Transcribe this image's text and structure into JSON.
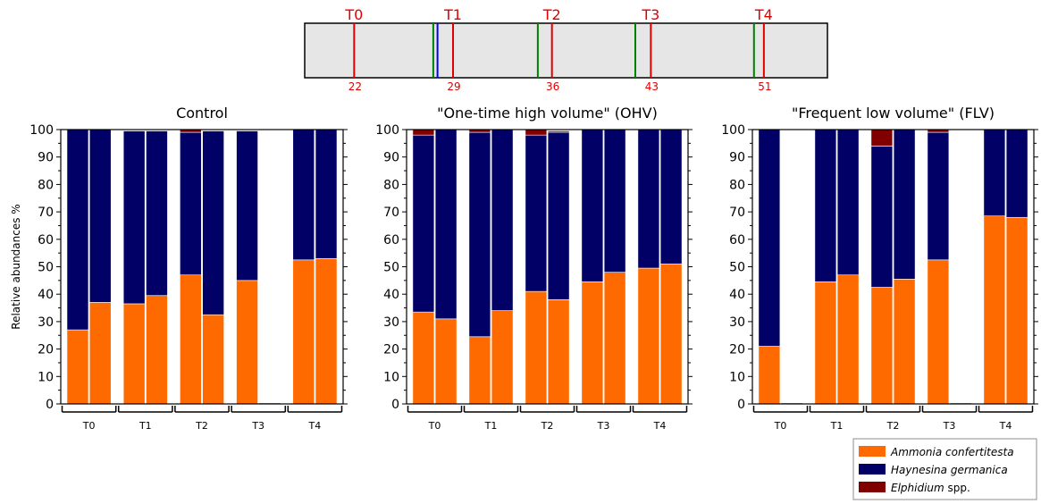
{
  "timeline": {
    "points": [
      {
        "label": "T0",
        "day": "22",
        "day_value": 22
      },
      {
        "label": "T1",
        "day": "29",
        "day_value": 29
      },
      {
        "label": "T2",
        "day": "36",
        "day_value": 36
      },
      {
        "label": "T3",
        "day": "43",
        "day_value": 43
      },
      {
        "label": "T4",
        "day": "51",
        "day_value": 51
      }
    ],
    "blue_marker_day": 27.9,
    "green_marker_days": [
      27.6,
      35.0,
      41.9,
      50.3
    ],
    "range": [
      18.5,
      55.5
    ]
  },
  "colors": {
    "ammonia": "#ff6a00",
    "haynesina": "#000066",
    "elphidium": "#800000",
    "timepoint_line": "#e00000",
    "green_line": "#008000",
    "blue_line": "#0000ff",
    "timeline_fill": "#e6e6e6"
  },
  "legend": {
    "items": [
      {
        "italic": "Ammonia confertitesta",
        "plain": "",
        "color_key": "ammonia"
      },
      {
        "italic": "Haynesina germanica",
        "plain": "",
        "color_key": "haynesina"
      },
      {
        "italic": "Elphidium",
        "plain": " spp.",
        "color_key": "elphidium"
      }
    ]
  },
  "chart_data": [
    {
      "type": "bar",
      "stacked": true,
      "title": "Control",
      "ylabel": "Relative abundances %",
      "xlabel": "",
      "ylim": [
        0,
        100
      ],
      "yticks": [
        0,
        10,
        20,
        30,
        40,
        50,
        60,
        70,
        80,
        90,
        100
      ],
      "groups": [
        "T0",
        "T1",
        "T2",
        "T3",
        "T4"
      ],
      "bars_per_group": 2,
      "series": [
        {
          "name": "Ammonia confertitesta",
          "values": [
            27,
            37,
            36.5,
            39.5,
            47,
            32.5,
            45,
            0,
            52.5,
            53
          ]
        },
        {
          "name": "Haynesina germanica",
          "values": [
            73,
            63,
            63,
            60,
            52,
            67,
            54.5,
            0,
            47.5,
            47
          ]
        },
        {
          "name": "Elphidium spp.",
          "values": [
            0,
            0,
            0,
            0,
            1,
            0,
            0,
            0,
            0,
            0
          ]
        }
      ]
    },
    {
      "type": "bar",
      "stacked": true,
      "title": "\"One-time high volume\" (OHV)",
      "ylabel": "",
      "xlabel": "",
      "ylim": [
        0,
        100
      ],
      "yticks": [
        0,
        10,
        20,
        30,
        40,
        50,
        60,
        70,
        80,
        90,
        100
      ],
      "groups": [
        "T0",
        "T1",
        "T2",
        "T3",
        "T4"
      ],
      "bars_per_group": 2,
      "series": [
        {
          "name": "Ammonia confertitesta",
          "values": [
            33.5,
            31,
            24.5,
            34,
            41,
            38,
            44.5,
            48,
            49.5,
            51
          ]
        },
        {
          "name": "Haynesina germanica",
          "values": [
            64.5,
            69,
            74.5,
            66,
            57,
            61,
            55.5,
            52,
            50.5,
            49
          ]
        },
        {
          "name": "Elphidium spp.",
          "values": [
            2,
            0,
            1,
            0,
            2,
            0.5,
            0,
            0,
            0,
            0
          ]
        }
      ]
    },
    {
      "type": "bar",
      "stacked": true,
      "title": "\"Frequent low volume\" (FLV)",
      "ylabel": "",
      "xlabel": "",
      "ylim": [
        0,
        100
      ],
      "yticks": [
        0,
        10,
        20,
        30,
        40,
        50,
        60,
        70,
        80,
        90,
        100
      ],
      "groups": [
        "T0",
        "T1",
        "T2",
        "T3",
        "T4"
      ],
      "bars_per_group": 2,
      "series": [
        {
          "name": "Ammonia confertitesta",
          "values": [
            21,
            0,
            44.5,
            47,
            42.5,
            45.5,
            52.5,
            0,
            68.5,
            68
          ]
        },
        {
          "name": "Haynesina germanica",
          "values": [
            79,
            0,
            55.5,
            53,
            51.5,
            54.5,
            46.5,
            0,
            31.5,
            32
          ]
        },
        {
          "name": "Elphidium spp.",
          "values": [
            0,
            0,
            0,
            0,
            6,
            0,
            1,
            0,
            0,
            0
          ]
        }
      ]
    }
  ]
}
